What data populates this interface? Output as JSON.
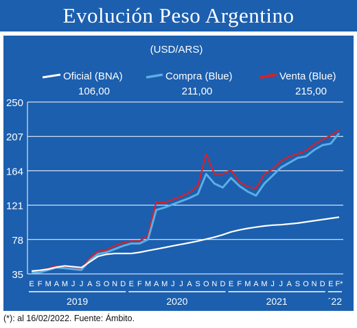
{
  "header": {
    "title": "Evolución Peso Argentino"
  },
  "footnote": "(*): al 16/02/2022. Fuente: Ámbito.",
  "colors": {
    "panel": "#1c5fae",
    "oficial": "#ffffff",
    "compra": "#5aaee6",
    "venta": "#d8202a",
    "grid": "#ffffff"
  },
  "chart_data": {
    "type": "line",
    "unit_label": "(USD/ARS)",
    "ylim": [
      35,
      250
    ],
    "yticks": [
      35,
      78,
      121,
      164,
      207,
      250
    ],
    "grid": true,
    "legend_position": "top",
    "month_labels": [
      "E",
      "F",
      "M",
      "A",
      "M",
      "J",
      "J",
      "A",
      "S",
      "O",
      "N",
      "D",
      "E",
      "F",
      "M",
      "A",
      "M",
      "J",
      "J",
      "A",
      "S",
      "O",
      "N",
      "D",
      "E",
      "F",
      "M",
      "A",
      "M",
      "J",
      "J",
      "A",
      "S",
      "O",
      "N",
      "D",
      "E",
      "F*"
    ],
    "year_labels": [
      "2019",
      "2020",
      "2021",
      "´22"
    ],
    "x": [
      "2019-01",
      "2019-02",
      "2019-03",
      "2019-04",
      "2019-05",
      "2019-06",
      "2019-07",
      "2019-08",
      "2019-09",
      "2019-10",
      "2019-11",
      "2019-12",
      "2020-01",
      "2020-02",
      "2020-03",
      "2020-04",
      "2020-05",
      "2020-06",
      "2020-07",
      "2020-08",
      "2020-09",
      "2020-10",
      "2020-11",
      "2020-12",
      "2021-01",
      "2021-02",
      "2021-03",
      "2021-04",
      "2021-05",
      "2021-06",
      "2021-07",
      "2021-08",
      "2021-09",
      "2021-10",
      "2021-11",
      "2021-12",
      "2022-01",
      "2022-02"
    ],
    "series": [
      {
        "name": "Oficial (BNA)",
        "last_value": "106,00",
        "values": [
          38.5,
          39.5,
          41,
          43.5,
          45,
          44,
          43,
          50,
          57,
          59.5,
          60.5,
          60.5,
          60.5,
          62,
          64,
          66,
          68,
          70,
          72,
          74,
          76,
          78.5,
          81,
          84,
          87.5,
          90,
          92,
          93.5,
          95,
          96,
          96.5,
          97.5,
          98.5,
          100,
          101.5,
          103,
          104.5,
          106
        ]
      },
      {
        "name": "Compra (Blue)",
        "last_value": "211,00",
        "values": [
          36.5,
          37,
          40,
          43,
          42,
          41,
          40,
          52,
          60,
          62,
          66,
          70,
          73,
          73,
          78,
          115,
          118,
          122,
          126,
          130,
          135,
          160,
          148,
          143,
          155,
          145,
          138,
          133,
          148,
          158,
          168,
          174,
          180,
          182,
          190,
          196,
          198,
          211
        ]
      },
      {
        "name": "Venta (Blue)",
        "last_value": "215,00",
        "values": [
          38,
          38.5,
          42,
          45,
          44,
          43,
          42,
          55,
          63,
          65,
          70,
          74,
          76,
          76,
          83,
          125,
          124,
          128,
          132,
          137,
          145,
          185,
          160,
          160,
          165,
          150,
          144,
          142,
          160,
          166,
          176,
          182,
          185,
          189,
          197,
          203,
          208,
          215
        ]
      }
    ]
  }
}
